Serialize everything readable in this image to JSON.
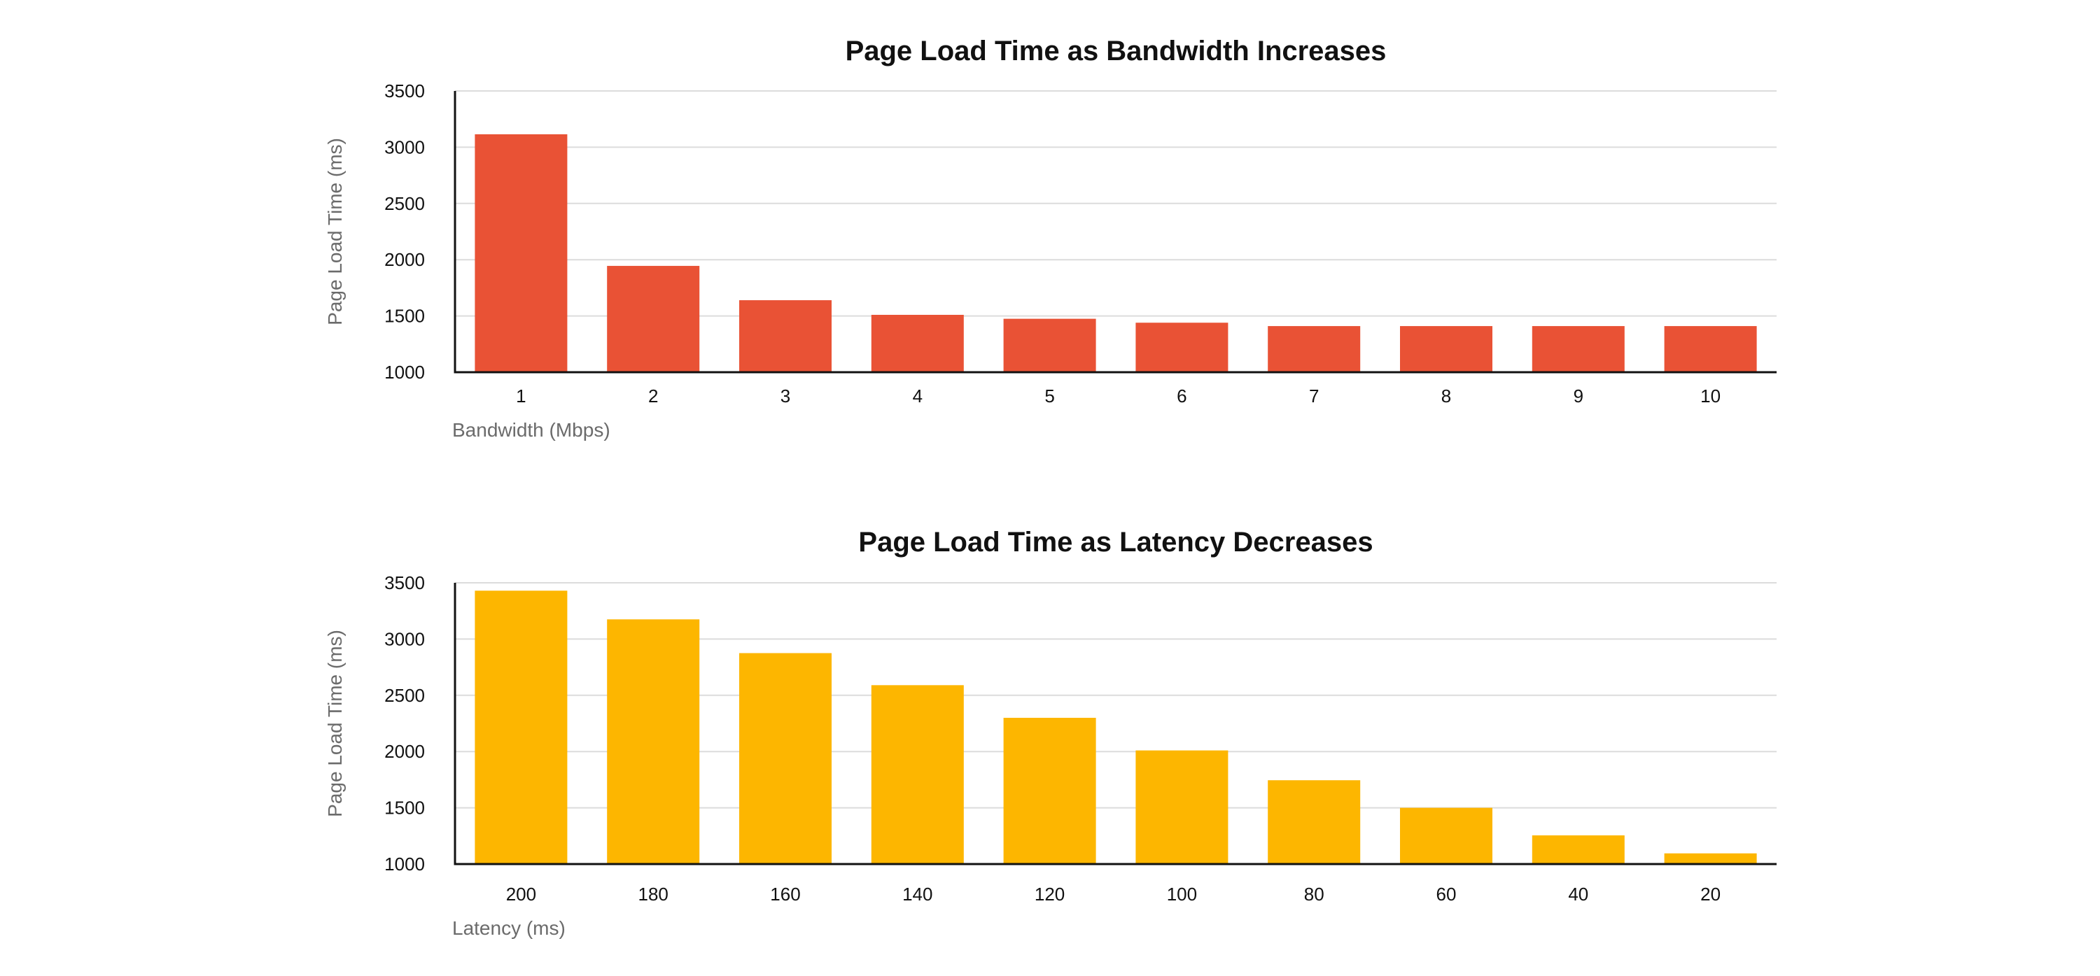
{
  "chart_data": [
    {
      "type": "bar",
      "title": "Page Load Time as Bandwidth Increases",
      "xlabel": "Bandwidth (Mbps)",
      "ylabel": "Page Load Time (ms)",
      "categories": [
        "1",
        "2",
        "3",
        "4",
        "5",
        "6",
        "7",
        "8",
        "9",
        "10"
      ],
      "values": [
        3115,
        1945,
        1640,
        1510,
        1475,
        1440,
        1410,
        1410,
        1410,
        1410
      ],
      "ylim": [
        1000,
        3500
      ],
      "yticks": [
        1000,
        1500,
        2000,
        2500,
        3000,
        3500
      ],
      "grid": true,
      "color": "#E95235"
    },
    {
      "type": "bar",
      "title": "Page Load Time as Latency Decreases",
      "xlabel": "Latency (ms)",
      "ylabel": "Page Load Time (ms)",
      "categories": [
        "200",
        "180",
        "160",
        "140",
        "120",
        "100",
        "80",
        "60",
        "40",
        "20"
      ],
      "values": [
        3430,
        3175,
        2875,
        2590,
        2300,
        2010,
        1745,
        1500,
        1255,
        1095
      ],
      "ylim": [
        1000,
        3500
      ],
      "yticks": [
        1000,
        1500,
        2000,
        2500,
        3000,
        3500
      ],
      "grid": true,
      "color": "#FDB600"
    }
  ]
}
